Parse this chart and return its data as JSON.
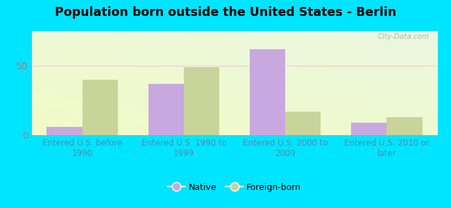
{
  "title": "Population born outside the United States - Berlin",
  "categories": [
    "Entered U.S. before\n1990",
    "Entered U.S. 1990 to\n1999",
    "Entered U.S. 2000 to\n2009",
    "Entered U.S. 2010 or\nlater"
  ],
  "native_values": [
    6,
    37,
    62,
    9
  ],
  "foreign_values": [
    40,
    49,
    17,
    13
  ],
  "native_color": "#c9a8e0",
  "foreign_color": "#c8d49a",
  "yticks": [
    0,
    50
  ],
  "ylim": [
    0,
    75
  ],
  "bar_width": 0.35,
  "outer_bg": "#00e5ff",
  "watermark": "City-Data.com",
  "legend_native": "Native",
  "legend_foreign": "Foreign-born",
  "xlabel_color": "#5588aa",
  "ytick_color": "#888888"
}
